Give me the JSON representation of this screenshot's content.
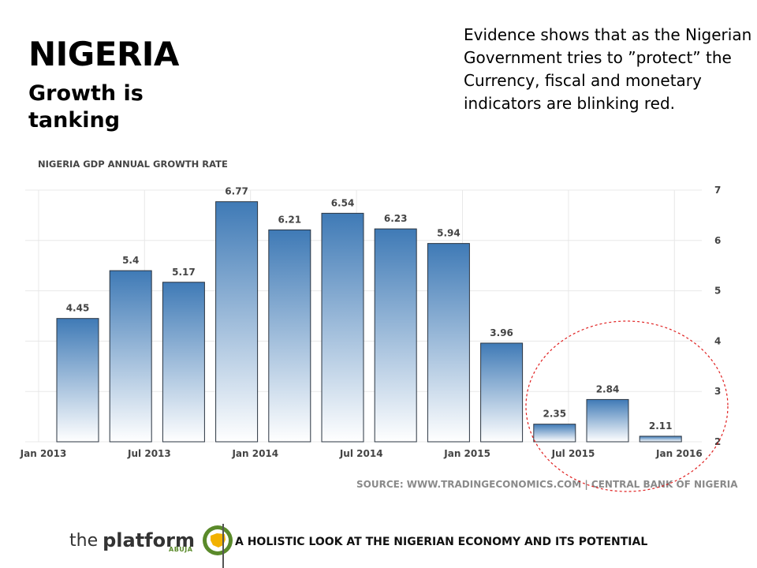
{
  "header": {
    "title": "NIGERIA",
    "subtitle_lines": [
      "Growth is",
      "tanking"
    ]
  },
  "evidence_lines": [
    "Evidence shows that as the Nigerian",
    "Government tries to ”protect” the",
    "Currency,  fiscal and monetary",
    "indicators are blinking red."
  ],
  "chart_data": {
    "type": "bar",
    "title": "NIGERIA GDP ANNUAL GROWTH RATE",
    "categories": [
      "Q1 2013",
      "Q2 2013",
      "Q3 2013",
      "Q4 2013",
      "Q1 2014",
      "Q2 2014",
      "Q3 2014",
      "Q4 2014",
      "Q1 2015",
      "Q2 2015",
      "Q3 2015",
      "Q4 2015"
    ],
    "values": [
      4.45,
      5.4,
      5.17,
      6.77,
      6.21,
      6.54,
      6.23,
      5.94,
      3.96,
      2.35,
      2.84,
      2.11
    ],
    "data_labels": [
      "4.45",
      "5.4",
      "5.17",
      "6.77",
      "6.21",
      "6.54",
      "6.23",
      "5.94",
      "3.96",
      "2.35",
      "2.84",
      "2.11"
    ],
    "x_tick_labels": [
      "Jan 2013",
      "Jul 2013",
      "Jan 2014",
      "Jul 2014",
      "Jan 2015",
      "Jul 2015",
      "Jan 2016"
    ],
    "y_ticks": [
      2,
      3,
      4,
      5,
      6,
      7
    ],
    "y_tick_labels": [
      "2",
      "3",
      "4",
      "5",
      "6",
      "7"
    ],
    "ylim": [
      2,
      7
    ],
    "y_axis_side": "right",
    "grid": true,
    "xlabel": "",
    "ylabel": "",
    "source": "SOURCE: WWW.TRADINGECONOMICS.COM  |  CENTRAL BANK OF NIGERIA",
    "annotation": "dashed red circle around the last three bars",
    "colors": {
      "bar_top": "#3f7ab6",
      "bar_bottom": "#ffffff",
      "bar_stroke": "#2a3440",
      "highlight": "#e02020",
      "grid": "#e8e8e8",
      "text": "#444444"
    }
  },
  "footer": {
    "logo_the": "the",
    "logo_platform": "platform",
    "logo_city": "ABUJA",
    "tagline": "A HOLISTIC LOOK AT THE NIGERIAN ECONOMY AND ITS POTENTIAL",
    "logo_color": "#5a8a2a"
  }
}
